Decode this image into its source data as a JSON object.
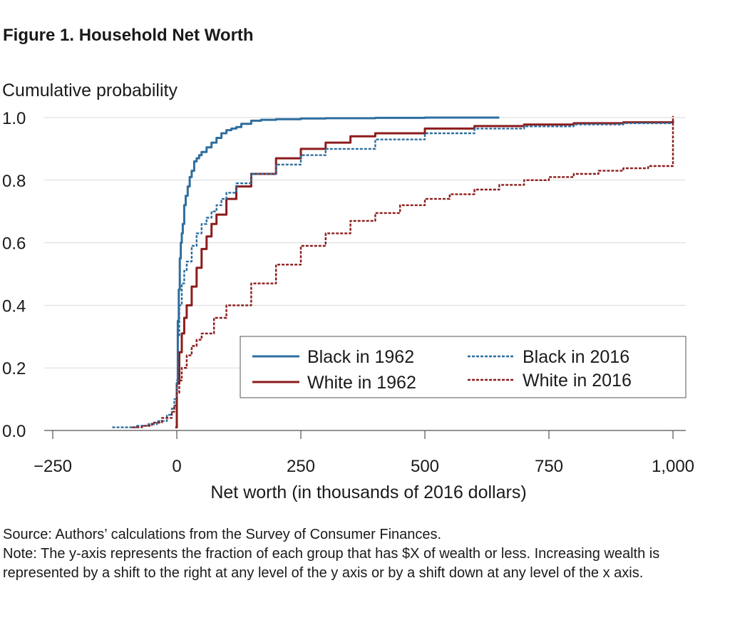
{
  "figure_title": "Figure 1. Household Net Worth",
  "source": "Source: Authors’ calculations from the Survey of Consumer Finances.",
  "note": "Note: The y-axis represents the fraction of each group that has $X of wealth or less. Increasing wealth is represented by a shift to the right at any level of the y axis or by a shift down at any level of the x axis.",
  "chart_data": {
    "type": "line",
    "title": "",
    "xlabel": "Net worth (in thousands of 2016 dollars)",
    "ylabel": "Cumulative probability",
    "xlim": [
      -250,
      1000
    ],
    "ylim": [
      0,
      1
    ],
    "x_ticks": [
      -250,
      0,
      250,
      500,
      750,
      1000
    ],
    "x_tick_labels": [
      "−250",
      "0",
      "250",
      "500",
      "750",
      "1,000"
    ],
    "y_ticks": [
      0,
      0.2,
      0.4,
      0.6,
      0.8,
      1.0
    ],
    "y_tick_labels": [
      "0.0",
      "0.2",
      "0.4",
      "0.6",
      "0.8",
      "1.0"
    ],
    "grid": "horizontal",
    "legend_position": "bottom-right",
    "series": [
      {
        "name": "Black in 1962",
        "color": "#2e6e9e",
        "style": "solid",
        "x": [
          -2,
          0,
          2,
          4,
          6,
          8,
          10,
          12,
          15,
          18,
          22,
          26,
          30,
          35,
          40,
          45,
          50,
          60,
          70,
          80,
          90,
          100,
          110,
          120,
          130,
          150,
          170,
          200,
          250,
          300,
          400,
          500,
          650
        ],
        "y": [
          0.02,
          0.15,
          0.35,
          0.45,
          0.55,
          0.6,
          0.63,
          0.66,
          0.72,
          0.75,
          0.78,
          0.81,
          0.83,
          0.86,
          0.87,
          0.88,
          0.89,
          0.905,
          0.92,
          0.935,
          0.95,
          0.96,
          0.965,
          0.97,
          0.98,
          0.99,
          0.993,
          0.995,
          0.997,
          0.998,
          0.999,
          1.0,
          1.0
        ]
      },
      {
        "name": "White in 1962",
        "color": "#8c1c1c",
        "style": "solid",
        "x": [
          -3,
          0,
          5,
          10,
          15,
          20,
          30,
          40,
          50,
          60,
          70,
          80,
          100,
          120,
          150,
          200,
          250,
          300,
          350,
          400,
          500,
          600,
          700,
          800,
          900,
          1000
        ],
        "y": [
          0.01,
          0.15,
          0.25,
          0.31,
          0.36,
          0.4,
          0.46,
          0.52,
          0.58,
          0.62,
          0.66,
          0.69,
          0.74,
          0.78,
          0.82,
          0.87,
          0.9,
          0.92,
          0.94,
          0.95,
          0.965,
          0.973,
          0.978,
          0.982,
          0.985,
          0.99
        ]
      },
      {
        "name": "Black in 2016",
        "color": "#2e6e9e",
        "style": "dotted",
        "x": [
          -130,
          -100,
          -80,
          -60,
          -40,
          -20,
          -10,
          -5,
          0,
          2,
          5,
          10,
          15,
          20,
          30,
          40,
          50,
          60,
          70,
          80,
          90,
          100,
          120,
          150,
          200,
          250,
          300,
          400,
          500,
          600,
          700,
          800,
          900,
          1000
        ],
        "y": [
          0.01,
          0.01,
          0.015,
          0.02,
          0.03,
          0.05,
          0.07,
          0.1,
          0.16,
          0.3,
          0.4,
          0.47,
          0.51,
          0.54,
          0.59,
          0.63,
          0.66,
          0.68,
          0.7,
          0.72,
          0.74,
          0.76,
          0.79,
          0.82,
          0.85,
          0.88,
          0.9,
          0.93,
          0.95,
          0.965,
          0.972,
          0.978,
          0.982,
          0.985
        ]
      },
      {
        "name": "White in 2016",
        "color": "#8c1c1c",
        "style": "dotted",
        "x": [
          -90,
          -70,
          -50,
          -30,
          -10,
          -5,
          0,
          5,
          10,
          20,
          30,
          40,
          50,
          75,
          100,
          150,
          200,
          250,
          300,
          350,
          400,
          450,
          500,
          550,
          600,
          650,
          700,
          750,
          800,
          850,
          900,
          950,
          1000,
          1000,
          1000
        ],
        "y": [
          0.01,
          0.015,
          0.025,
          0.04,
          0.06,
          0.08,
          0.12,
          0.16,
          0.2,
          0.24,
          0.27,
          0.29,
          0.31,
          0.36,
          0.4,
          0.47,
          0.53,
          0.59,
          0.63,
          0.67,
          0.695,
          0.72,
          0.74,
          0.755,
          0.77,
          0.785,
          0.8,
          0.81,
          0.82,
          0.83,
          0.838,
          0.845,
          0.85,
          0.985,
          1.005
        ]
      }
    ]
  }
}
